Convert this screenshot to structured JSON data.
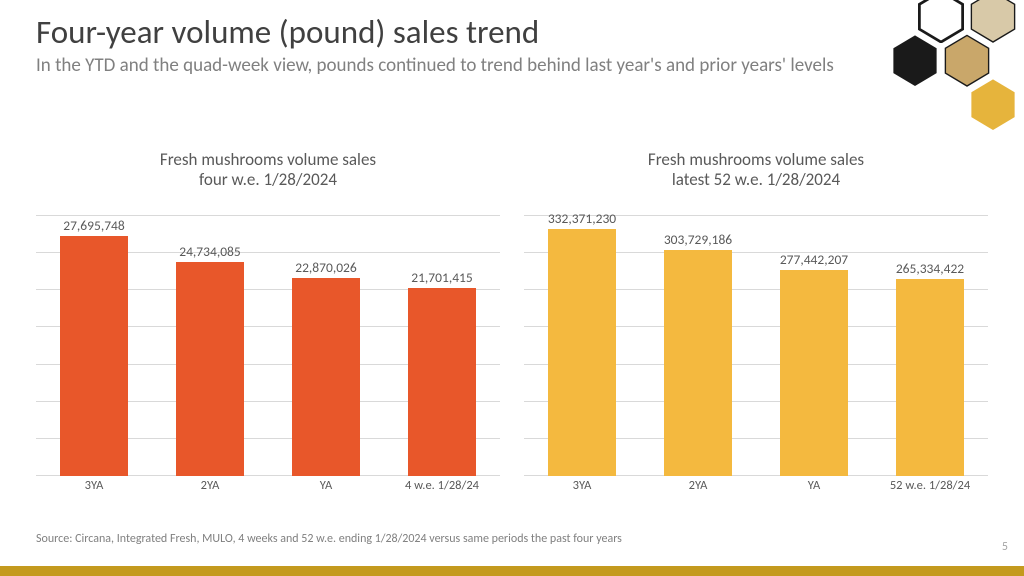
{
  "title": "Four-year volume (pound) sales trend",
  "subtitle": "In the YTD and the quad-week view, pounds continued to trend behind last year's and prior years' levels",
  "chart_left": {
    "type": "bar",
    "title": "Fresh mushrooms volume sales\nfour w.e. 1/28/2024",
    "title_fontsize": 17,
    "title_color": "#595959",
    "categories": [
      "3YA",
      "2YA",
      "YA",
      "4 w.e. 1/28/24"
    ],
    "values": [
      27695748,
      24734085,
      22870026,
      21701415
    ],
    "value_labels": [
      "27,695,748",
      "24,734,085",
      "22,870,026",
      "21,701,415"
    ],
    "bar_color": "#e8572a",
    "ylim": [
      0,
      30000000
    ],
    "gridlines": 7,
    "grid_color": "#d9d9d9",
    "background_color": "#ffffff",
    "data_label_fontsize": 13.5,
    "data_label_color": "#595959",
    "x_label_fontsize": 12.5,
    "bar_width_pct": 58
  },
  "chart_right": {
    "type": "bar",
    "title": "Fresh mushrooms volume sales\nlatest 52 w.e. 1/28/2024",
    "title_fontsize": 17,
    "title_color": "#595959",
    "categories": [
      "3YA",
      "2YA",
      "YA",
      "52 w.e. 1/28/24"
    ],
    "values": [
      332371230,
      303729186,
      277442207,
      265334422
    ],
    "value_labels": [
      "332,371,230",
      "303,729,186",
      "277,442,207",
      "265,334,422"
    ],
    "bar_color": "#f4b93f",
    "ylim": [
      0,
      350000000
    ],
    "gridlines": 7,
    "grid_color": "#d9d9d9",
    "background_color": "#ffffff",
    "data_label_fontsize": 13.5,
    "data_label_color": "#595959",
    "x_label_fontsize": 12.5,
    "bar_width_pct": 58
  },
  "source": "Source: Circana, Integrated Fresh, MULO, 4 weeks and 52 w.e. ending 1/28/2024 versus same periods the past four years",
  "page_number": "5",
  "bottom_bar_color": "#c49a1e",
  "hex_colors": {
    "outline": "#1a1a1a",
    "gold": "#e6b43c",
    "photo": "#d8c9a8"
  }
}
